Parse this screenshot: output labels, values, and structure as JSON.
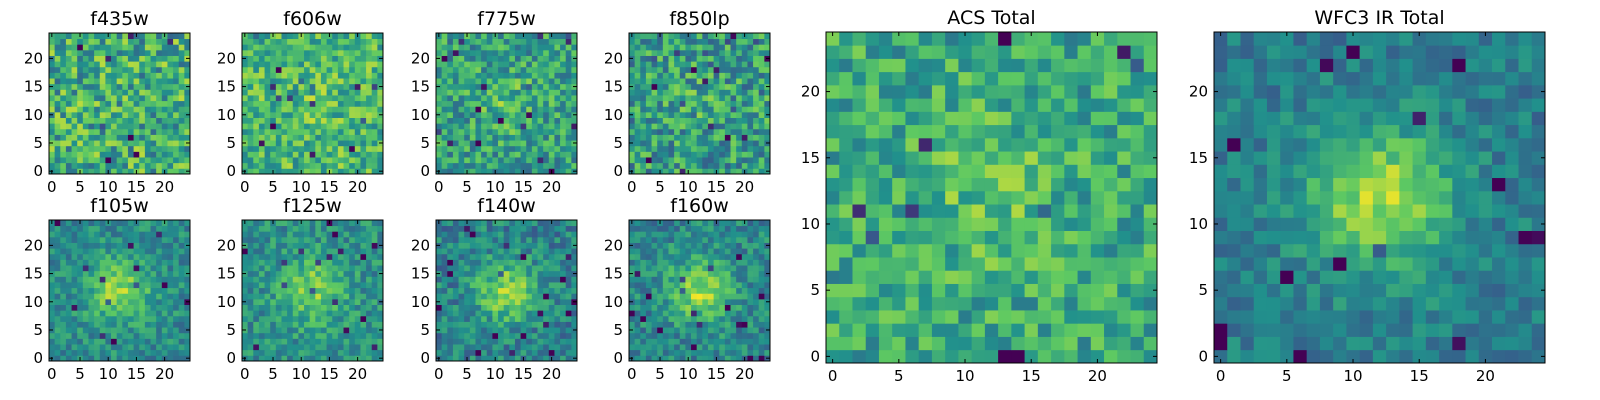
{
  "colormap": [
    "#440154",
    "#3b528b",
    "#21918c",
    "#5ec962",
    "#fde725"
  ],
  "chart_data": [
    {
      "type": "heatmap",
      "title": "f435w",
      "grid_size": 25,
      "seed": 11,
      "center_strength": 0.0,
      "noise": 0.55,
      "base": 0.62,
      "xticks": [
        "0",
        "5",
        "10",
        "15",
        "20"
      ],
      "yticks": [
        "0",
        "5",
        "10",
        "15",
        "20"
      ]
    },
    {
      "type": "heatmap",
      "title": "f606w",
      "grid_size": 25,
      "seed": 23,
      "center_strength": 0.05,
      "noise": 0.45,
      "base": 0.66,
      "xticks": [
        "0",
        "5",
        "10",
        "15",
        "20"
      ],
      "yticks": [
        "0",
        "5",
        "10",
        "15",
        "20"
      ]
    },
    {
      "type": "heatmap",
      "title": "f775w",
      "grid_size": 25,
      "seed": 37,
      "center_strength": 0.12,
      "noise": 0.45,
      "base": 0.56,
      "xticks": [
        "0",
        "5",
        "10",
        "15",
        "20"
      ],
      "yticks": [
        "0",
        "5",
        "10",
        "15",
        "20"
      ]
    },
    {
      "type": "heatmap",
      "title": "f850lp",
      "grid_size": 25,
      "seed": 41,
      "center_strength": 0.05,
      "noise": 0.5,
      "base": 0.55,
      "xticks": [
        "0",
        "5",
        "10",
        "15",
        "20"
      ],
      "yticks": [
        "0",
        "5",
        "10",
        "15",
        "20"
      ]
    },
    {
      "type": "heatmap",
      "title": "f105w",
      "grid_size": 25,
      "seed": 53,
      "center_strength": 0.35,
      "noise": 0.3,
      "base": 0.48,
      "xticks": [
        "0",
        "5",
        "10",
        "15",
        "20"
      ],
      "yticks": [
        "0",
        "5",
        "10",
        "15",
        "20"
      ]
    },
    {
      "type": "heatmap",
      "title": "f125w",
      "grid_size": 25,
      "seed": 61,
      "center_strength": 0.3,
      "noise": 0.32,
      "base": 0.5,
      "xticks": [
        "0",
        "5",
        "10",
        "15",
        "20"
      ],
      "yticks": [
        "0",
        "5",
        "10",
        "15",
        "20"
      ]
    },
    {
      "type": "heatmap",
      "title": "f140w",
      "grid_size": 25,
      "seed": 71,
      "center_strength": 0.38,
      "noise": 0.35,
      "base": 0.44,
      "xticks": [
        "0",
        "5",
        "10",
        "15",
        "20"
      ],
      "yticks": [
        "0",
        "5",
        "10",
        "15",
        "20"
      ]
    },
    {
      "type": "heatmap",
      "title": "f160w",
      "grid_size": 25,
      "seed": 83,
      "center_strength": 0.38,
      "noise": 0.33,
      "base": 0.46,
      "xticks": [
        "0",
        "5",
        "10",
        "15",
        "20"
      ],
      "yticks": [
        "0",
        "5",
        "10",
        "15",
        "20"
      ]
    },
    {
      "type": "heatmap",
      "title": "ACS Total",
      "grid_size": 25,
      "seed": 97,
      "center_strength": 0.12,
      "noise": 0.4,
      "base": 0.6,
      "xticks": [
        "0",
        "5",
        "10",
        "15",
        "20"
      ],
      "yticks": [
        "0",
        "5",
        "10",
        "15",
        "20"
      ]
    },
    {
      "type": "heatmap",
      "title": "WFC3 IR Total",
      "grid_size": 25,
      "seed": 101,
      "center_strength": 0.45,
      "noise": 0.25,
      "base": 0.42,
      "xticks": [
        "0",
        "5",
        "10",
        "15",
        "20"
      ],
      "yticks": [
        "0",
        "5",
        "10",
        "15",
        "20"
      ]
    }
  ]
}
